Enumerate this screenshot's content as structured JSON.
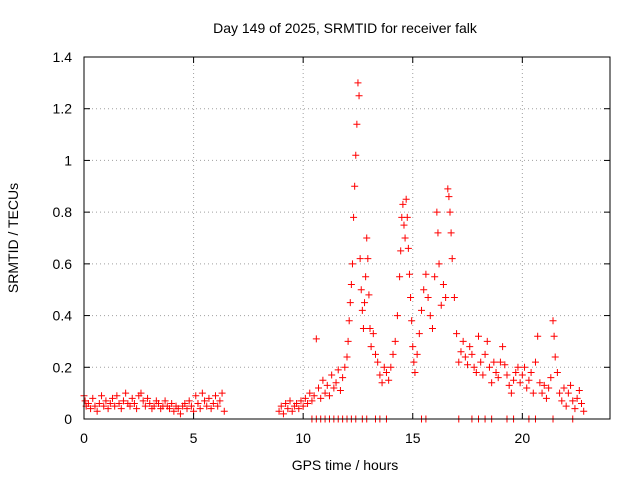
{
  "chart_data": {
    "type": "scatter",
    "title": "Day 149 of 2025, SRMTID for receiver falk",
    "xlabel": "GPS time / hours",
    "ylabel": "SRMTID / TECUs",
    "xlim": [
      0,
      24
    ],
    "ylim": [
      0,
      1.4
    ],
    "xticks": [
      0,
      5,
      10,
      15,
      20
    ],
    "xtick_labels": [
      "0",
      "5",
      "10",
      "15",
      "20"
    ],
    "yticks": [
      0,
      0.2,
      0.4,
      0.6,
      0.8,
      1.0,
      1.2,
      1.4
    ],
    "ytick_labels": [
      "0",
      "0.2",
      "0.4",
      "0.6",
      "0.8",
      "1",
      "1.2",
      "1.4"
    ],
    "grid": true,
    "marker": "plus",
    "colors": {
      "series": "#ff0000",
      "axes": "#000000",
      "grid": "#a0a0a0"
    },
    "series": [
      {
        "name": "SRMTID",
        "points": [
          [
            0.0,
            0.09
          ],
          [
            0.05,
            0.07
          ],
          [
            0.1,
            0.05
          ],
          [
            0.2,
            0.06
          ],
          [
            0.3,
            0.04
          ],
          [
            0.4,
            0.08
          ],
          [
            0.5,
            0.05
          ],
          [
            0.6,
            0.03
          ],
          [
            0.7,
            0.06
          ],
          [
            0.8,
            0.09
          ],
          [
            0.9,
            0.05
          ],
          [
            1.0,
            0.07
          ],
          [
            1.1,
            0.04
          ],
          [
            1.2,
            0.06
          ],
          [
            1.3,
            0.08
          ],
          [
            1.4,
            0.05
          ],
          [
            1.5,
            0.09
          ],
          [
            1.6,
            0.06
          ],
          [
            1.7,
            0.04
          ],
          [
            1.8,
            0.07
          ],
          [
            1.9,
            0.1
          ],
          [
            2.0,
            0.06
          ],
          [
            2.1,
            0.05
          ],
          [
            2.2,
            0.08
          ],
          [
            2.3,
            0.06
          ],
          [
            2.4,
            0.04
          ],
          [
            2.5,
            0.09
          ],
          [
            2.6,
            0.1
          ],
          [
            2.7,
            0.07
          ],
          [
            2.8,
            0.05
          ],
          [
            2.9,
            0.08
          ],
          [
            3.0,
            0.06
          ],
          [
            3.1,
            0.04
          ],
          [
            3.2,
            0.05
          ],
          [
            3.3,
            0.07
          ],
          [
            3.4,
            0.06
          ],
          [
            3.5,
            0.04
          ],
          [
            3.6,
            0.05
          ],
          [
            3.7,
            0.07
          ],
          [
            3.8,
            0.05
          ],
          [
            3.9,
            0.04
          ],
          [
            4.0,
            0.06
          ],
          [
            4.1,
            0.03
          ],
          [
            4.2,
            0.05
          ],
          [
            4.3,
            0.04
          ],
          [
            4.4,
            0.02
          ],
          [
            4.5,
            0.05
          ],
          [
            4.6,
            0.06
          ],
          [
            4.7,
            0.04
          ],
          [
            4.8,
            0.07
          ],
          [
            4.9,
            0.05
          ],
          [
            5.0,
            0.03
          ],
          [
            5.1,
            0.09
          ],
          [
            5.2,
            0.06
          ],
          [
            5.3,
            0.04
          ],
          [
            5.4,
            0.1
          ],
          [
            5.5,
            0.07
          ],
          [
            5.6,
            0.05
          ],
          [
            5.7,
            0.08
          ],
          [
            5.8,
            0.04
          ],
          [
            5.9,
            0.06
          ],
          [
            6.0,
            0.09
          ],
          [
            6.1,
            0.05
          ],
          [
            6.2,
            0.07
          ],
          [
            6.3,
            0.1
          ],
          [
            6.4,
            0.03
          ],
          [
            8.9,
            0.03
          ],
          [
            9.0,
            0.05
          ],
          [
            9.1,
            0.02
          ],
          [
            9.2,
            0.06
          ],
          [
            9.3,
            0.04
          ],
          [
            9.4,
            0.07
          ],
          [
            9.5,
            0.03
          ],
          [
            9.6,
            0.05
          ],
          [
            9.7,
            0.06
          ],
          [
            9.8,
            0.04
          ],
          [
            9.9,
            0.07
          ],
          [
            10.0,
            0.05
          ],
          [
            10.1,
            0.08
          ],
          [
            10.2,
            0.06
          ],
          [
            10.3,
            0.1
          ],
          [
            10.4,
            0.07
          ],
          [
            10.5,
            0.09
          ],
          [
            10.6,
            0.31
          ],
          [
            10.7,
            0.12
          ],
          [
            10.8,
            0.08
          ],
          [
            10.9,
            0.15
          ],
          [
            11.0,
            0.1
          ],
          [
            11.1,
            0.13
          ],
          [
            11.2,
            0.09
          ],
          [
            11.3,
            0.17
          ],
          [
            11.4,
            0.12
          ],
          [
            11.5,
            0.14
          ],
          [
            11.6,
            0.19
          ],
          [
            11.7,
            0.11
          ],
          [
            11.8,
            0.16
          ],
          [
            11.9,
            0.2
          ],
          [
            12.0,
            0.24
          ],
          [
            12.05,
            0.3
          ],
          [
            12.1,
            0.38
          ],
          [
            12.15,
            0.45
          ],
          [
            12.2,
            0.52
          ],
          [
            12.25,
            0.6
          ],
          [
            12.3,
            0.78
          ],
          [
            12.35,
            0.9
          ],
          [
            12.4,
            1.02
          ],
          [
            12.45,
            1.14
          ],
          [
            12.5,
            1.3
          ],
          [
            12.55,
            1.25
          ],
          [
            12.6,
            0.62
          ],
          [
            12.65,
            0.5
          ],
          [
            12.7,
            0.42
          ],
          [
            12.75,
            0.35
          ],
          [
            12.8,
            0.45
          ],
          [
            12.85,
            0.55
          ],
          [
            12.9,
            0.7
          ],
          [
            12.95,
            0.62
          ],
          [
            13.0,
            0.48
          ],
          [
            13.05,
            0.35
          ],
          [
            13.1,
            0.28
          ],
          [
            13.2,
            0.33
          ],
          [
            13.3,
            0.25
          ],
          [
            13.4,
            0.22
          ],
          [
            13.5,
            0.17
          ],
          [
            13.6,
            0.14
          ],
          [
            13.7,
            0.2
          ],
          [
            13.8,
            0.18
          ],
          [
            13.9,
            0.15
          ],
          [
            14.0,
            0.2
          ],
          [
            14.1,
            0.25
          ],
          [
            14.2,
            0.3
          ],
          [
            14.3,
            0.4
          ],
          [
            14.4,
            0.55
          ],
          [
            14.45,
            0.65
          ],
          [
            14.5,
            0.78
          ],
          [
            14.55,
            0.83
          ],
          [
            14.6,
            0.75
          ],
          [
            14.65,
            0.7
          ],
          [
            14.7,
            0.85
          ],
          [
            14.75,
            0.78
          ],
          [
            14.8,
            0.66
          ],
          [
            14.85,
            0.56
          ],
          [
            14.9,
            0.47
          ],
          [
            14.95,
            0.38
          ],
          [
            15.0,
            0.28
          ],
          [
            15.05,
            0.22
          ],
          [
            15.1,
            0.18
          ],
          [
            15.2,
            0.25
          ],
          [
            15.3,
            0.33
          ],
          [
            15.4,
            0.42
          ],
          [
            15.5,
            0.5
          ],
          [
            15.6,
            0.56
          ],
          [
            15.7,
            0.47
          ],
          [
            15.8,
            0.4
          ],
          [
            15.9,
            0.35
          ],
          [
            16.0,
            0.55
          ],
          [
            16.1,
            0.8
          ],
          [
            16.15,
            0.72
          ],
          [
            16.2,
            0.6
          ],
          [
            16.3,
            0.44
          ],
          [
            16.4,
            0.52
          ],
          [
            16.5,
            0.47
          ],
          [
            16.6,
            0.89
          ],
          [
            16.65,
            0.86
          ],
          [
            16.7,
            0.8
          ],
          [
            16.75,
            0.72
          ],
          [
            16.8,
            0.62
          ],
          [
            16.9,
            0.47
          ],
          [
            17.0,
            0.33
          ],
          [
            17.1,
            0.22
          ],
          [
            17.2,
            0.26
          ],
          [
            17.3,
            0.3
          ],
          [
            17.4,
            0.24
          ],
          [
            17.5,
            0.21
          ],
          [
            17.6,
            0.28
          ],
          [
            17.7,
            0.25
          ],
          [
            17.8,
            0.2
          ],
          [
            17.9,
            0.18
          ],
          [
            18.0,
            0.32
          ],
          [
            18.1,
            0.22
          ],
          [
            18.2,
            0.17
          ],
          [
            18.3,
            0.25
          ],
          [
            18.4,
            0.3
          ],
          [
            18.5,
            0.2
          ],
          [
            18.6,
            0.14
          ],
          [
            18.7,
            0.22
          ],
          [
            18.8,
            0.18
          ],
          [
            18.9,
            0.16
          ],
          [
            19.0,
            0.22
          ],
          [
            19.1,
            0.28
          ],
          [
            19.2,
            0.21
          ],
          [
            19.3,
            0.17
          ],
          [
            19.4,
            0.13
          ],
          [
            19.5,
            0.1
          ],
          [
            19.6,
            0.15
          ],
          [
            19.7,
            0.18
          ],
          [
            19.8,
            0.2
          ],
          [
            19.9,
            0.14
          ],
          [
            20.0,
            0.17
          ],
          [
            20.1,
            0.2
          ],
          [
            20.2,
            0.12
          ],
          [
            20.3,
            0.15
          ],
          [
            20.4,
            0.18
          ],
          [
            20.5,
            0.1
          ],
          [
            20.6,
            0.22
          ],
          [
            20.7,
            0.32
          ],
          [
            20.8,
            0.14
          ],
          [
            20.9,
            0.1
          ],
          [
            21.0,
            0.13
          ],
          [
            21.1,
            0.08
          ],
          [
            21.2,
            0.12
          ],
          [
            21.3,
            0.16
          ],
          [
            21.4,
            0.38
          ],
          [
            21.45,
            0.32
          ],
          [
            21.5,
            0.24
          ],
          [
            21.6,
            0.18
          ],
          [
            21.7,
            0.1
          ],
          [
            21.8,
            0.07
          ],
          [
            21.9,
            0.12
          ],
          [
            22.0,
            0.05
          ],
          [
            22.1,
            0.1
          ],
          [
            22.2,
            0.13
          ],
          [
            22.3,
            0.07
          ],
          [
            22.4,
            0.04
          ],
          [
            22.5,
            0.08
          ],
          [
            22.6,
            0.11
          ],
          [
            22.7,
            0.06
          ],
          [
            22.8,
            0.03
          ]
        ],
        "zero_points": [
          10.4,
          10.6,
          10.8,
          11.0,
          11.2,
          11.4,
          11.6,
          11.8,
          12.0,
          12.2,
          12.4,
          12.7,
          12.9,
          13.3,
          13.5,
          13.8,
          15.4,
          15.6,
          17.1,
          17.7,
          18.0,
          18.3,
          18.6,
          19.3,
          19.6,
          20.3,
          20.6,
          21.4,
          22.3
        ]
      }
    ]
  }
}
